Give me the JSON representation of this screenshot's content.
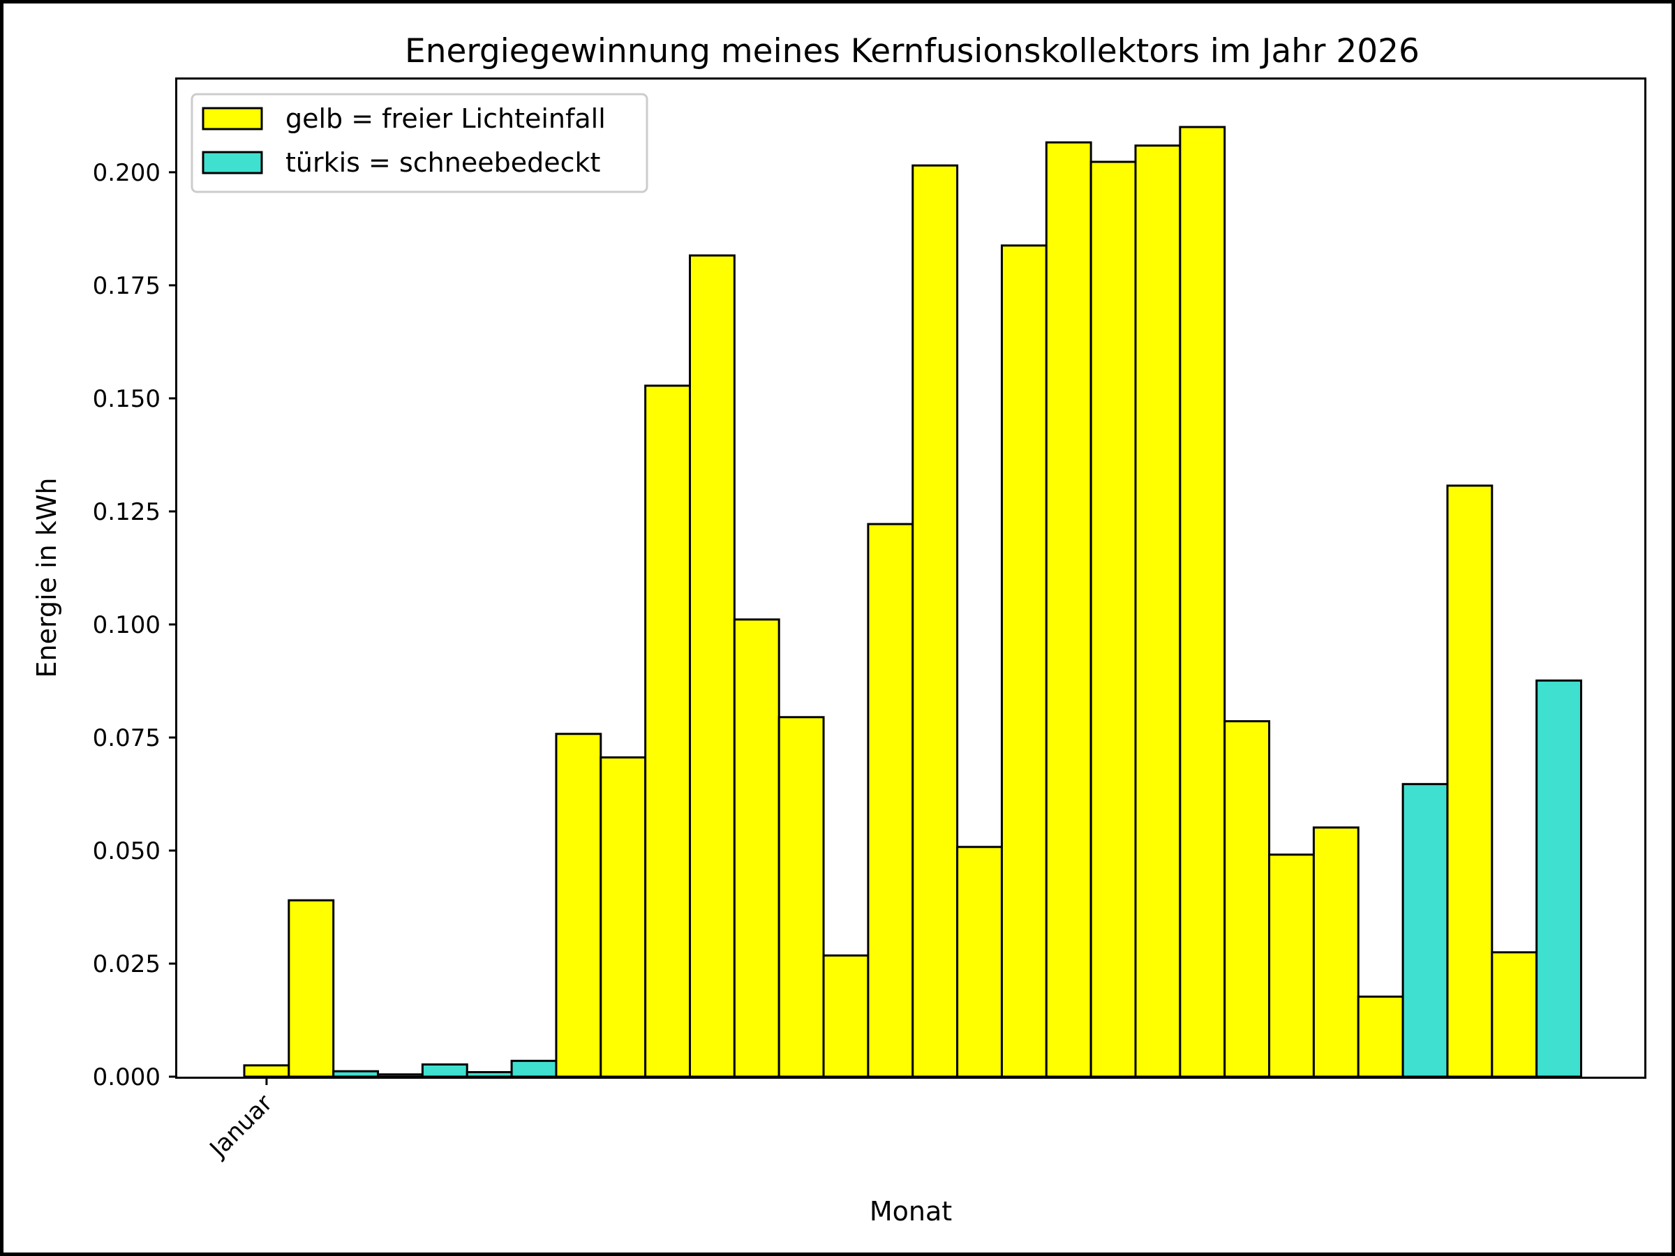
{
  "chart_data": {
    "type": "bar",
    "title": "Energiegewinnung meines Kernfusionskollektors im Jahr 2026",
    "xlabel": "Monat",
    "ylabel": "Energie in kWh",
    "ylim": [
      0,
      0.2205
    ],
    "yticks": [
      "0.000",
      "0.025",
      "0.050",
      "0.075",
      "0.100",
      "0.125",
      "0.150",
      "0.175",
      "0.200"
    ],
    "xtick_labels": [
      "Januar"
    ],
    "grid": false,
    "legend_position": "top-left",
    "colors": {
      "gelb": "#ffff00",
      "tuerkis": "#40e0d0",
      "edge": "#000000"
    },
    "legend": [
      {
        "label": "gelb = freier Lichteinfall",
        "color": "#ffff00"
      },
      {
        "label": "türkis = schneebedeckt",
        "color": "#40e0d0"
      }
    ],
    "bars": [
      {
        "value": 0.0025,
        "color": "#ffff00"
      },
      {
        "value": 0.039,
        "color": "#ffff00"
      },
      {
        "value": 0.0012,
        "color": "#40e0d0"
      },
      {
        "value": 0.0005,
        "color": "#40e0d0"
      },
      {
        "value": 0.0027,
        "color": "#40e0d0"
      },
      {
        "value": 0.001,
        "color": "#40e0d0"
      },
      {
        "value": 0.0035,
        "color": "#40e0d0"
      },
      {
        "value": 0.0758,
        "color": "#ffff00"
      },
      {
        "value": 0.0706,
        "color": "#ffff00"
      },
      {
        "value": 0.1528,
        "color": "#ffff00"
      },
      {
        "value": 0.1816,
        "color": "#ffff00"
      },
      {
        "value": 0.1011,
        "color": "#ffff00"
      },
      {
        "value": 0.0795,
        "color": "#ffff00"
      },
      {
        "value": 0.0268,
        "color": "#ffff00"
      },
      {
        "value": 0.1222,
        "color": "#ffff00"
      },
      {
        "value": 0.2015,
        "color": "#ffff00"
      },
      {
        "value": 0.0508,
        "color": "#ffff00"
      },
      {
        "value": 0.1838,
        "color": "#ffff00"
      },
      {
        "value": 0.2066,
        "color": "#ffff00"
      },
      {
        "value": 0.2023,
        "color": "#ffff00"
      },
      {
        "value": 0.2059,
        "color": "#ffff00"
      },
      {
        "value": 0.21,
        "color": "#ffff00"
      },
      {
        "value": 0.0786,
        "color": "#ffff00"
      },
      {
        "value": 0.0491,
        "color": "#ffff00"
      },
      {
        "value": 0.0551,
        "color": "#ffff00"
      },
      {
        "value": 0.0177,
        "color": "#ffff00"
      },
      {
        "value": 0.0647,
        "color": "#40e0d0"
      },
      {
        "value": 0.1307,
        "color": "#ffff00"
      },
      {
        "value": 0.0275,
        "color": "#ffff00"
      },
      {
        "value": 0.0876,
        "color": "#40e0d0"
      }
    ]
  }
}
